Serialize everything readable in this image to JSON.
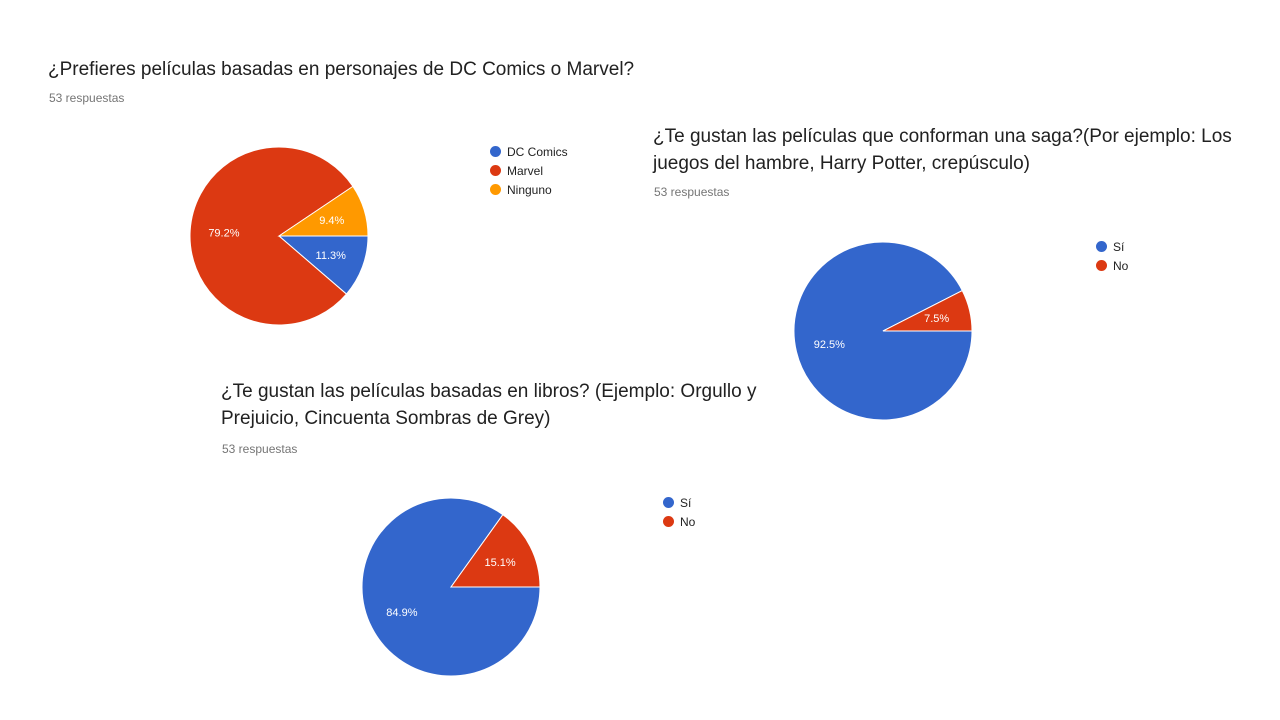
{
  "chart_data": [
    {
      "type": "pie",
      "title": "¿Prefieres películas basadas en personajes de DC Comics o Marvel?",
      "subtitle": "53 respuestas",
      "categories": [
        "DC Comics",
        "Marvel",
        "Ninguno"
      ],
      "values": [
        11.3,
        79.2,
        9.4
      ],
      "labels": [
        "11.3%",
        "79.2%",
        "9.4%"
      ],
      "colors": [
        "#3366cc",
        "#dc3912",
        "#ff9900"
      ],
      "legend": "right"
    },
    {
      "type": "pie",
      "title": "¿Te gustan las películas que conforman una saga?(Por ejemplo: Los juegos del hambre, Harry Potter, crepúsculo)",
      "subtitle": "53 respuestas",
      "categories": [
        "Sí",
        "No"
      ],
      "values": [
        92.5,
        7.5
      ],
      "labels": [
        "92.5%",
        "7.5%"
      ],
      "colors": [
        "#3366cc",
        "#dc3912"
      ],
      "legend": "right"
    },
    {
      "type": "pie",
      "title": "¿Te gustan las películas basadas en libros? (Ejemplo: Orgullo y Prejuicio, Cincuenta Sombras de Grey)",
      "subtitle": "53 respuestas",
      "categories": [
        "Sí",
        "No"
      ],
      "values": [
        84.9,
        15.1
      ],
      "labels": [
        "84.9%",
        "15.1%"
      ],
      "colors": [
        "#3366cc",
        "#dc3912"
      ],
      "legend": "right"
    }
  ]
}
